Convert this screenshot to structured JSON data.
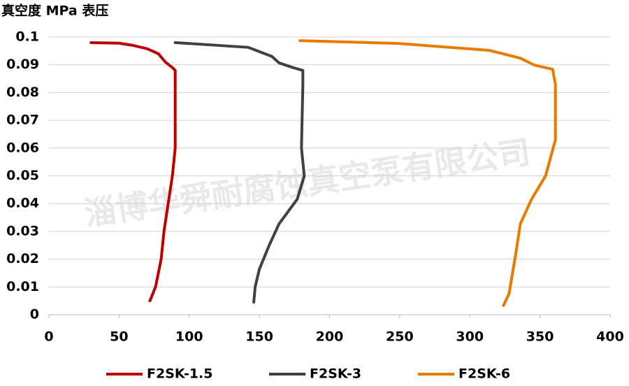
{
  "chart_data": {
    "type": "line",
    "title": "真空度 MPa 表压",
    "watermark": "淄博华舜耐腐蚀真空泵有限公司",
    "xlim": [
      0,
      400
    ],
    "xticks": [
      0,
      50,
      100,
      150,
      200,
      250,
      300,
      350,
      400
    ],
    "ylim": [
      0,
      0.1
    ],
    "yticks": [
      0,
      0.01,
      0.02,
      0.03,
      0.04,
      0.05,
      0.06,
      0.07,
      0.08,
      0.09,
      0.1
    ],
    "grid": true,
    "series": [
      {
        "name": "F2SK-1.5",
        "color": "#c00000",
        "x": [
          30,
          50,
          60,
          70,
          78,
          83,
          88,
          90,
          90,
          90,
          88,
          85,
          82,
          80,
          76,
          72
        ],
        "values": [
          0.098,
          0.0978,
          0.097,
          0.0958,
          0.094,
          0.091,
          0.089,
          0.088,
          0.07,
          0.06,
          0.05,
          0.04,
          0.03,
          0.02,
          0.01,
          0.005
        ]
      },
      {
        "name": "F2SK-3",
        "color": "#404040",
        "x": [
          90,
          142,
          159,
          164,
          174,
          181,
          181,
          180,
          182,
          177,
          164,
          157,
          150,
          147,
          146
        ],
        "values": [
          0.098,
          0.0963,
          0.093,
          0.0907,
          0.089,
          0.088,
          0.083,
          0.06,
          0.05,
          0.0416,
          0.0327,
          0.025,
          0.0164,
          0.01,
          0.0045
        ]
      },
      {
        "name": "F2SK-6",
        "color": "#e87a00",
        "x": [
          179,
          249,
          314,
          336,
          346,
          359,
          361,
          361,
          354,
          344,
          336,
          333,
          328,
          324
        ],
        "values": [
          0.0987,
          0.0977,
          0.0952,
          0.0924,
          0.0899,
          0.0884,
          0.083,
          0.063,
          0.05,
          0.0416,
          0.0327,
          0.0227,
          0.0076,
          0.0033
        ]
      }
    ]
  }
}
